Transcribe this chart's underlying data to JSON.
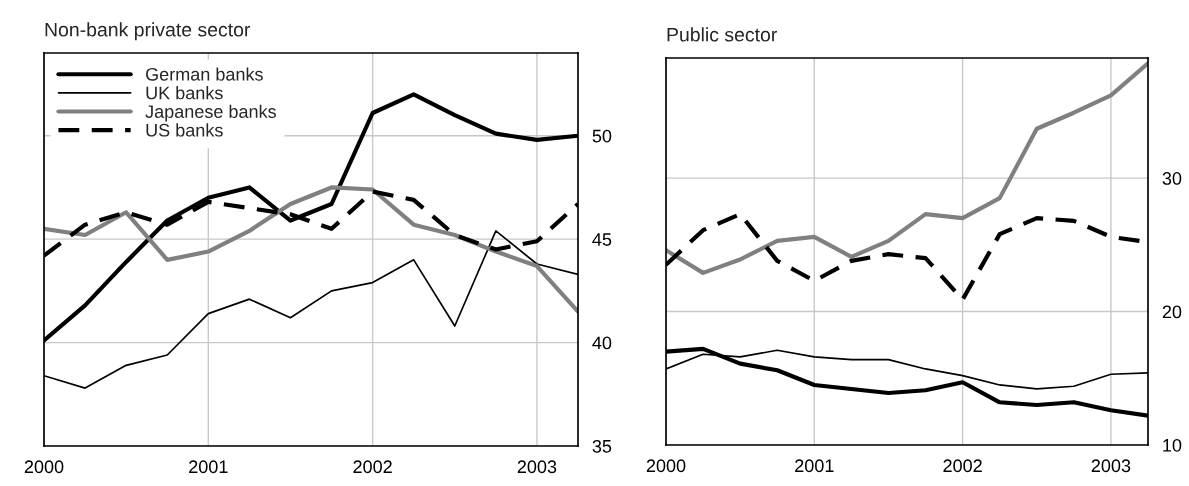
{
  "chart_data": [
    {
      "type": "line",
      "title": "Non-bank private sector",
      "x": [
        2000,
        2000.25,
        2000.5,
        2000.75,
        2001,
        2001.25,
        2001.5,
        2001.75,
        2002,
        2002.25,
        2002.5,
        2002.75,
        2003,
        2003.25
      ],
      "series": [
        {
          "name": "German banks",
          "color": "#000000",
          "line_style": "solid",
          "values": [
            40.1,
            41.8,
            43.9,
            45.9,
            47.0,
            47.5,
            45.9,
            46.7,
            51.1,
            52.0,
            51.0,
            50.1,
            49.8,
            50.0
          ]
        },
        {
          "name": "UK banks",
          "color": "#000000",
          "line_style": "solid",
          "values": [
            38.4,
            37.8,
            38.9,
            39.4,
            41.4,
            42.1,
            41.2,
            42.5,
            42.9,
            44.0,
            40.8,
            45.4,
            43.8,
            43.3
          ]
        },
        {
          "name": "Japanese banks",
          "color": "#808080",
          "line_style": "solid",
          "values": [
            45.5,
            45.2,
            46.3,
            44.0,
            44.4,
            45.4,
            46.7,
            47.5,
            47.4,
            45.7,
            45.2,
            44.4,
            43.7,
            41.5
          ]
        },
        {
          "name": "US banks",
          "color": "#000000",
          "line_style": "dashed",
          "values": [
            44.2,
            45.7,
            46.3,
            45.7,
            46.8,
            46.5,
            46.2,
            45.5,
            47.3,
            46.9,
            45.2,
            44.5,
            44.9,
            46.7
          ]
        }
      ],
      "xlim": [
        2000,
        2003.25
      ],
      "xticks": [
        2000,
        2001,
        2002,
        2003
      ],
      "ylim": [
        35,
        54
      ],
      "yticks": [
        35,
        40,
        45,
        50
      ],
      "grid": true,
      "legend": "top left"
    },
    {
      "type": "line",
      "title": "Public sector",
      "x": [
        2000,
        2000.25,
        2000.5,
        2000.75,
        2001,
        2001.25,
        2001.5,
        2001.75,
        2002,
        2002.25,
        2002.5,
        2002.75,
        2003,
        2003.25
      ],
      "series": [
        {
          "color": "#000000",
          "line_style": "solid",
          "values": [
            17.0,
            17.2,
            16.1,
            15.6,
            14.5,
            14.2,
            13.9,
            14.1,
            14.7,
            13.2,
            13.0,
            13.2,
            12.6,
            12.2
          ]
        },
        {
          "color": "#000000",
          "line_style": "solid",
          "values": [
            15.7,
            16.8,
            16.6,
            17.1,
            16.6,
            16.4,
            16.4,
            15.7,
            15.2,
            14.5,
            14.2,
            14.4,
            15.3,
            15.4
          ]
        },
        {
          "color": "#808080",
          "line_style": "solid",
          "values": [
            24.6,
            22.9,
            23.9,
            25.3,
            25.6,
            24.1,
            25.3,
            27.3,
            27.0,
            28.5,
            33.7,
            34.9,
            36.2,
            38.6
          ]
        },
        {
          "color": "#000000",
          "line_style": "dashed",
          "values": [
            23.5,
            26.1,
            27.3,
            23.8,
            22.3,
            23.8,
            24.3,
            24.0,
            20.9,
            25.8,
            27.0,
            26.8,
            25.6,
            25.2
          ]
        }
      ],
      "xlim": [
        2000,
        2003.25
      ],
      "xticks": [
        2000,
        2001,
        2002,
        2003
      ],
      "ylim": [
        10,
        39
      ],
      "yticks": [
        10,
        20,
        30
      ],
      "grid": true
    }
  ]
}
